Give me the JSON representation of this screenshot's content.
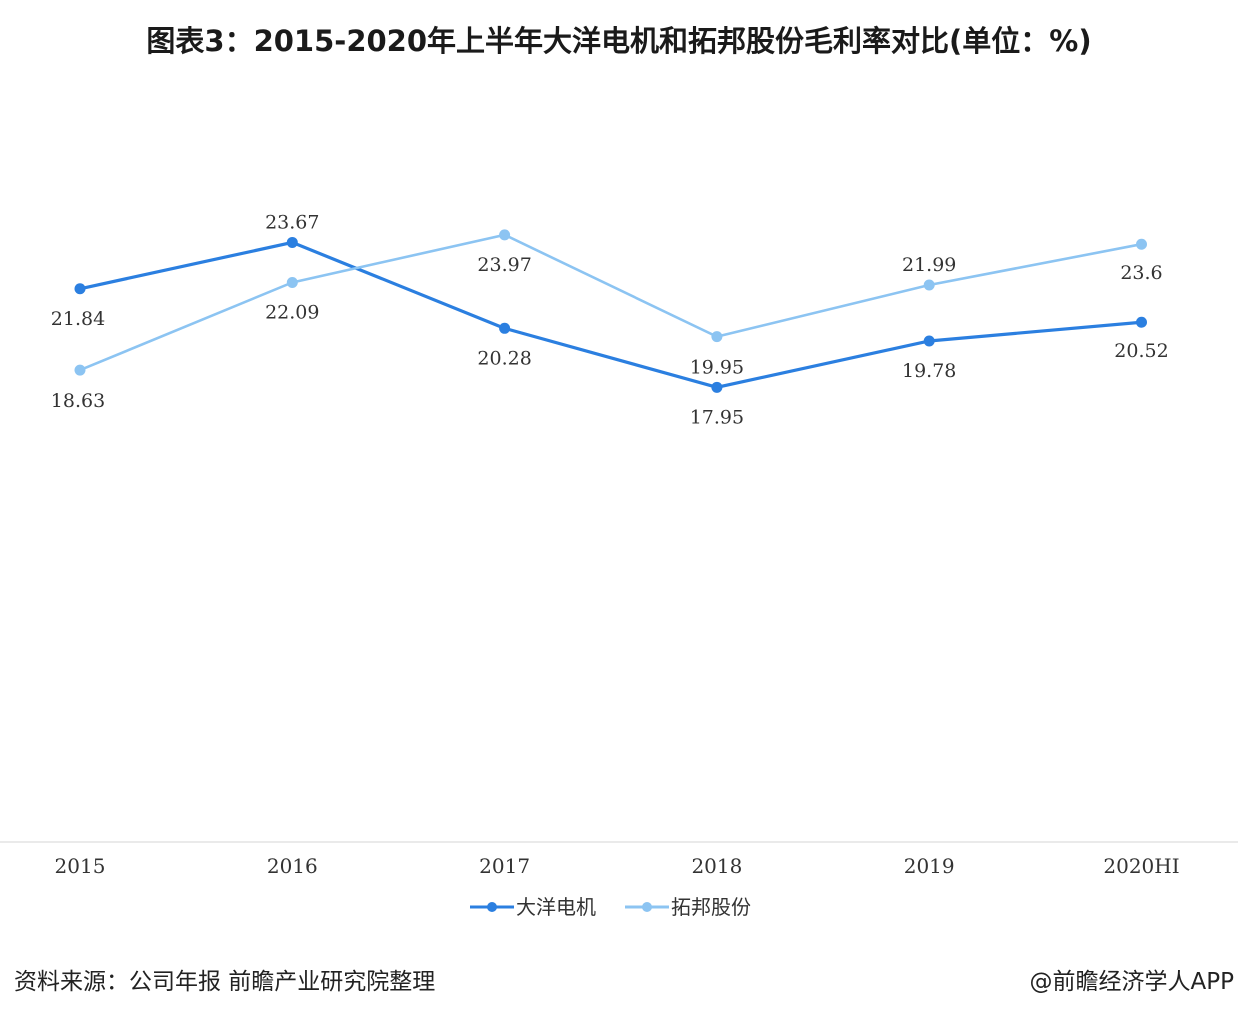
{
  "title": "图表3：2015-2020年上半年大洋电机和拓邦股份毛利率对比(单位：%)",
  "source": "资料来源：公司年报 前瞻产业研究院整理",
  "brand": "@前瞻经济学人APP",
  "chart_data": {
    "type": "line",
    "title": "图表3：2015-2020年上半年大洋电机和拓邦股份毛利率对比(单位：%)",
    "categories": [
      "2015",
      "2016",
      "2017",
      "2018",
      "2019",
      "2020HI"
    ],
    "series": [
      {
        "name": "大洋电机",
        "values": [
          21.84,
          23.67,
          20.28,
          17.95,
          19.78,
          20.52
        ],
        "color": "#2b7fe0",
        "labels": [
          "21.84",
          "23.67",
          "20.28",
          "17.95",
          "19.78",
          "20.52"
        ]
      },
      {
        "name": "拓邦股份",
        "values": [
          18.63,
          22.09,
          23.97,
          19.95,
          21.99,
          23.6
        ],
        "color": "#8cc4f2",
        "labels": [
          "18.63",
          "22.09",
          "23.97",
          "19.95",
          "21.99",
          "23.6"
        ]
      }
    ],
    "xlabel": "",
    "ylabel": "",
    "ylim": [
      0,
      26
    ],
    "grid": false,
    "legend": "bottom-center"
  }
}
